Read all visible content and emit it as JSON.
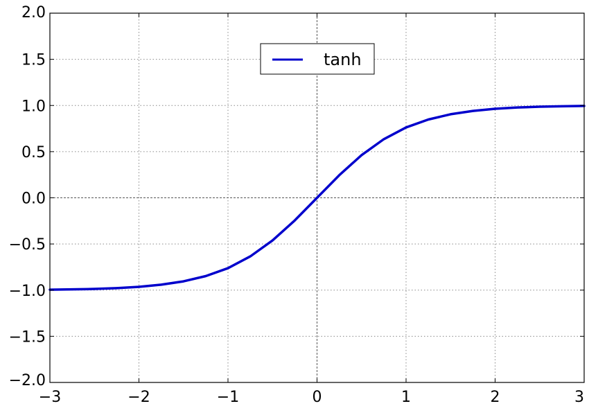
{
  "chart_data": {
    "type": "line",
    "title": "",
    "xlabel": "",
    "ylabel": "",
    "xlim": [
      -3,
      3
    ],
    "ylim": [
      -2.0,
      2.0
    ],
    "grid": true,
    "grid_style": "dotted",
    "zero_lines": true,
    "legend_position": "upper-center",
    "x_ticks": [
      -3,
      -2,
      -1,
      0,
      1,
      2,
      3
    ],
    "x_tick_labels": [
      "−3",
      "−2",
      "−1",
      "0",
      "1",
      "2",
      "3"
    ],
    "y_ticks": [
      2.0,
      1.5,
      1.0,
      0.5,
      0.0,
      -0.5,
      -1.0,
      -1.5,
      -2.0
    ],
    "y_tick_labels": [
      "2.0",
      "1.5",
      "1.0",
      "0.5",
      "0.0",
      "−0.5",
      "−1.0",
      "−1.5",
      "−2.0"
    ],
    "series": [
      {
        "name": "tanh",
        "color": "#0000cc",
        "x": [
          -3.0,
          -2.75,
          -2.5,
          -2.25,
          -2.0,
          -1.75,
          -1.5,
          -1.25,
          -1.0,
          -0.75,
          -0.5,
          -0.25,
          0.0,
          0.25,
          0.5,
          0.75,
          1.0,
          1.25,
          1.5,
          1.75,
          2.0,
          2.25,
          2.5,
          2.75,
          3.0
        ],
        "y": [
          -0.995,
          -0.992,
          -0.987,
          -0.978,
          -0.964,
          -0.941,
          -0.905,
          -0.848,
          -0.762,
          -0.635,
          -0.462,
          -0.245,
          0.0,
          0.245,
          0.462,
          0.635,
          0.762,
          0.848,
          0.905,
          0.941,
          0.964,
          0.978,
          0.987,
          0.992,
          0.995
        ]
      }
    ]
  }
}
